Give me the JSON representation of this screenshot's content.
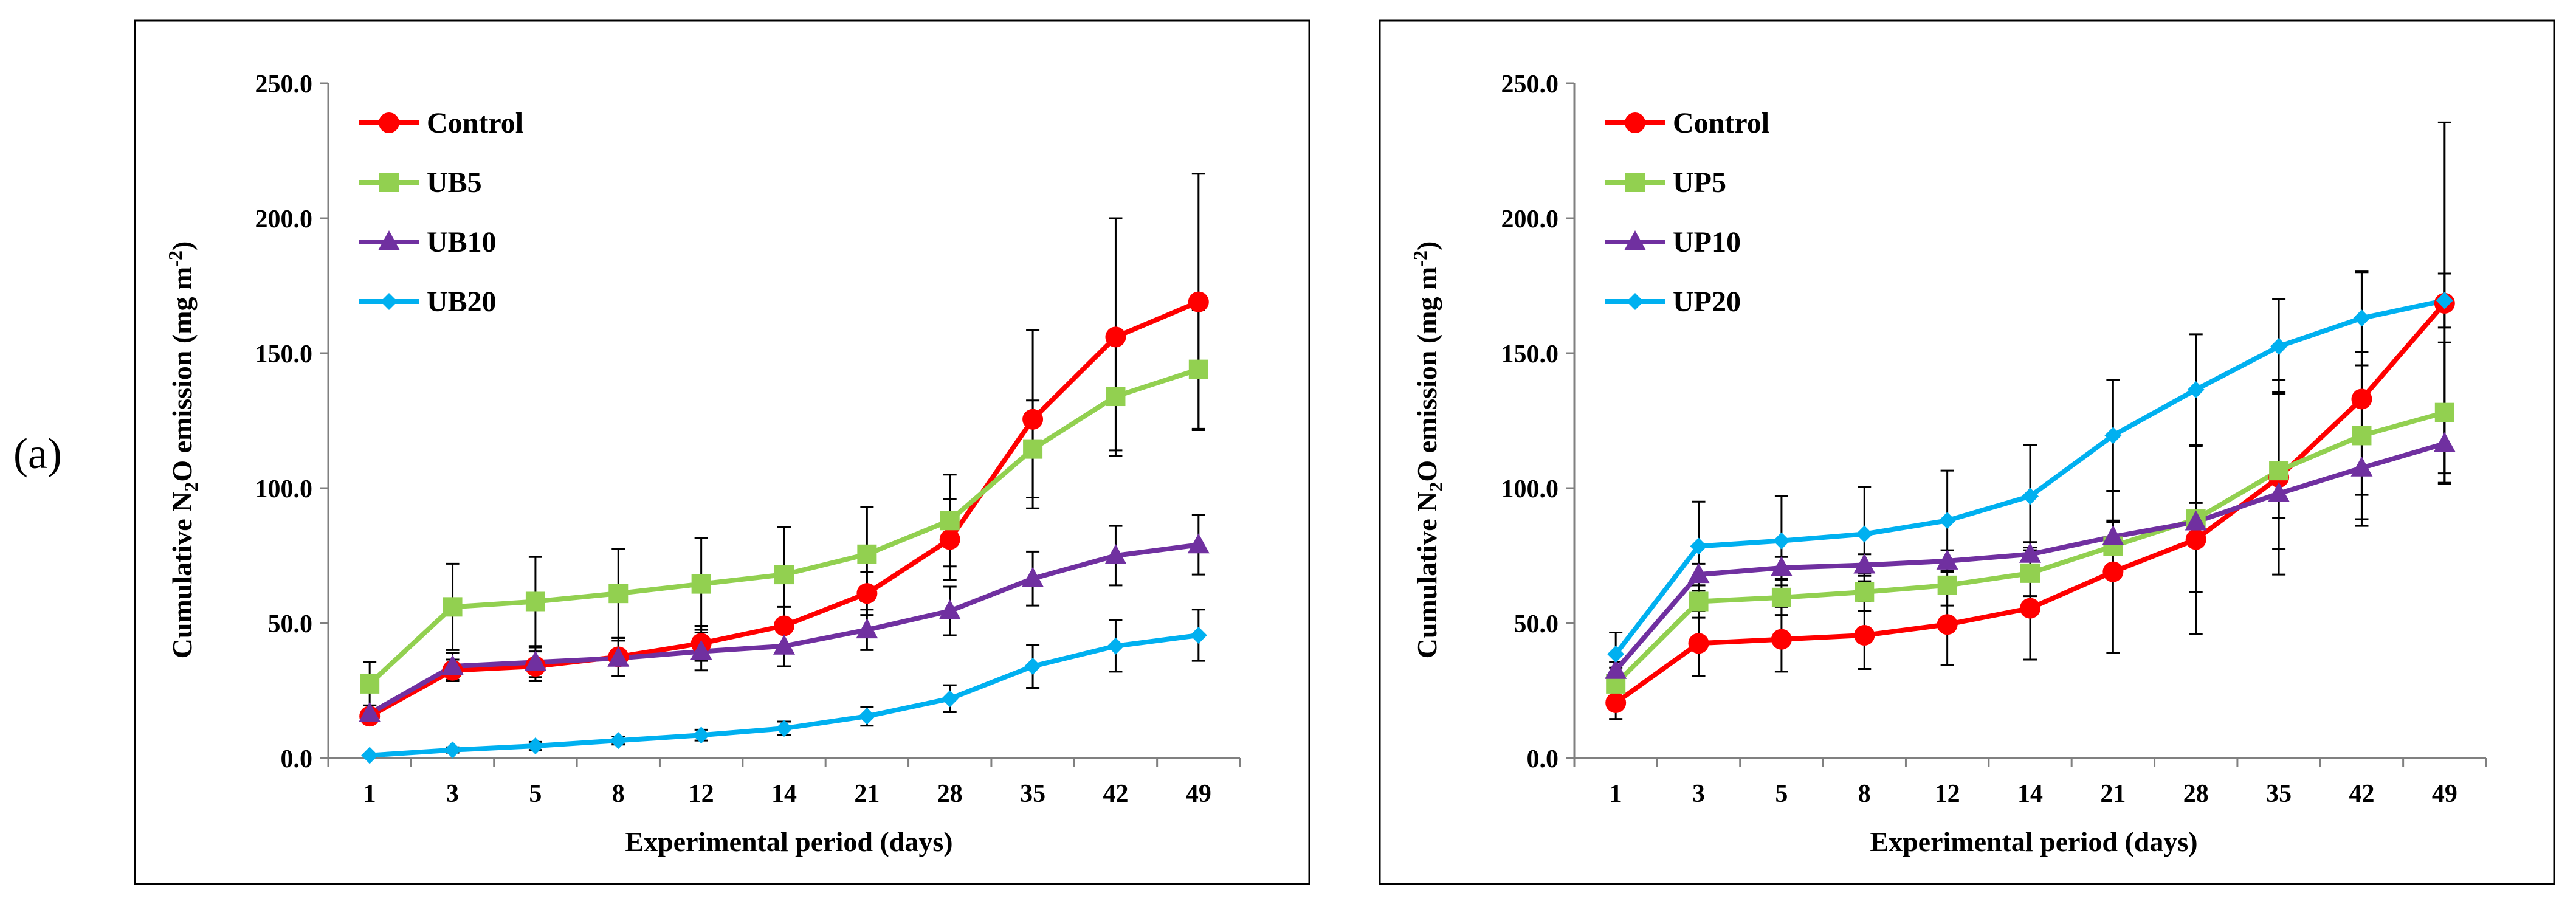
{
  "figure_label": "(a)",
  "colors": {
    "control": "#ff0000",
    "level1": "#92d050",
    "level2": "#7030a0",
    "level3": "#00b0f0",
    "axis": "#808080",
    "text": "#000000",
    "frame": "#000000"
  },
  "chart_data": [
    {
      "type": "line",
      "title": "",
      "xlabel": "Experimental period (days)",
      "ylabel_main": "Cumulative N",
      "ylabel_sub": "2",
      "ylabel_mid": "O emission (mg m",
      "ylabel_sup": "-2",
      "ylabel_end": ")",
      "categories": [
        "1",
        "3",
        "5",
        "8",
        "12",
        "14",
        "21",
        "28",
        "35",
        "42",
        "49"
      ],
      "ylim": [
        0,
        250
      ],
      "yticks": [
        0,
        50,
        100,
        150,
        200,
        250
      ],
      "ytick_labels": [
        "0.0",
        "50.0",
        "100.0",
        "150.0",
        "200.0",
        "250.0"
      ],
      "legend_position": "top-left",
      "series": [
        {
          "name": "Control",
          "color_key": "control",
          "marker": "circle",
          "values": [
            15.5,
            32.5,
            34.0,
            37.5,
            42.5,
            49.0,
            61.0,
            81.0,
            125.5,
            156.0,
            169.0
          ],
          "errors": [
            2.5,
            4.0,
            5.5,
            7.0,
            6.5,
            7.0,
            8.0,
            15.0,
            33.0,
            44.0,
            47.5
          ]
        },
        {
          "name": "UB5",
          "color_key": "level1",
          "marker": "square",
          "values": [
            27.5,
            56.0,
            58.0,
            61.0,
            64.5,
            68.0,
            75.5,
            88.0,
            114.5,
            134.0,
            144.0
          ],
          "errors": [
            8.0,
            16.0,
            16.5,
            16.5,
            17.0,
            17.5,
            17.5,
            17.0,
            18.0,
            20.0,
            22.0
          ]
        },
        {
          "name": "UB10",
          "color_key": "level2",
          "marker": "triangle",
          "values": [
            16.5,
            34.0,
            35.5,
            37.0,
            39.5,
            41.5,
            47.5,
            54.5,
            66.5,
            75.0,
            79.0
          ],
          "errors": [
            3.0,
            5.0,
            5.5,
            6.5,
            7.0,
            7.5,
            7.5,
            9.0,
            10.0,
            11.0,
            11.0
          ]
        },
        {
          "name": "UB20",
          "color_key": "level3",
          "marker": "diamond",
          "values": [
            1.0,
            3.0,
            4.5,
            6.5,
            8.5,
            11.0,
            15.5,
            22.0,
            34.0,
            41.5,
            45.5
          ],
          "errors": [
            0.5,
            1.0,
            1.5,
            1.5,
            2.0,
            2.5,
            3.5,
            5.0,
            8.0,
            9.5,
            9.5
          ]
        }
      ]
    },
    {
      "type": "line",
      "title": "",
      "xlabel": "Experimental period (days)",
      "ylabel_main": "Cumulative N",
      "ylabel_sub": "2",
      "ylabel_mid": "O emission (mg m",
      "ylabel_sup": "-2",
      "ylabel_end": ")",
      "categories": [
        "1",
        "3",
        "5",
        "8",
        "12",
        "14",
        "21",
        "28",
        "35",
        "42",
        "49"
      ],
      "ylim": [
        0,
        250
      ],
      "yticks": [
        0,
        50,
        100,
        150,
        200,
        250
      ],
      "ytick_labels": [
        "0.0",
        "50.0",
        "100.0",
        "150.0",
        "200.0",
        "250.0"
      ],
      "legend_position": "top-left",
      "series": [
        {
          "name": "Control",
          "color_key": "control",
          "marker": "circle",
          "values": [
            20.5,
            42.5,
            44.0,
            45.5,
            49.5,
            55.5,
            69.0,
            81.0,
            104.0,
            133.0,
            168.5
          ],
          "errors": [
            6.0,
            12.0,
            12.0,
            12.5,
            15.0,
            19.0,
            30.0,
            35.0,
            36.0,
            47.0,
            67.0
          ]
        },
        {
          "name": "UP5",
          "color_key": "level1",
          "marker": "square",
          "values": [
            27.5,
            58.0,
            59.5,
            61.5,
            64.0,
            68.5,
            78.5,
            88.5,
            106.5,
            119.5,
            128.0
          ],
          "errors": [
            6.0,
            6.0,
            6.5,
            7.0,
            7.5,
            8.5,
            9.5,
            27.0,
            29.0,
            31.0,
            26.0
          ]
        },
        {
          "name": "UP10",
          "color_key": "level2",
          "marker": "triangle",
          "values": [
            32.5,
            68.0,
            70.5,
            71.5,
            73.0,
            75.5,
            82.0,
            87.5,
            98.0,
            107.5,
            116.5
          ],
          "errors": [
            3.0,
            4.0,
            4.0,
            4.0,
            4.0,
            4.5,
            5.5,
            7.0,
            9.0,
            10.0,
            11.0
          ]
        },
        {
          "name": "UP20",
          "color_key": "level3",
          "marker": "diamond",
          "values": [
            38.5,
            78.5,
            80.5,
            83.0,
            88.0,
            97.0,
            119.5,
            136.5,
            152.5,
            163.0,
            169.5
          ],
          "errors": [
            8.0,
            16.5,
            16.5,
            17.5,
            18.5,
            19.0,
            20.5,
            20.5,
            17.5,
            17.5,
            10.0
          ]
        }
      ]
    }
  ]
}
